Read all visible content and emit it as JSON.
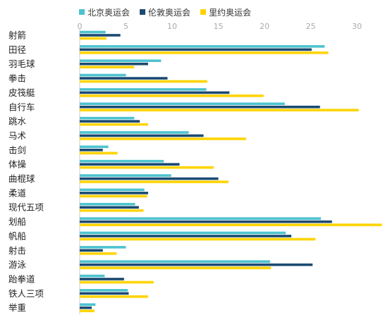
{
  "chart_data": {
    "type": "bar",
    "orientation": "horizontal",
    "categories": [
      "射箭",
      "田径",
      "羽毛球",
      "拳击",
      "皮筏艇",
      "自行车",
      "跳水",
      "马术",
      "击剑",
      "体操",
      "曲棍球",
      "柔道",
      "现代五项",
      "划船",
      "帆船",
      "射击",
      "游泳",
      "跆拳道",
      "铁人三项",
      "举重"
    ],
    "series": [
      {
        "name": "北京奥运会",
        "color": "#4dc3cf",
        "values": [
          2.8,
          26.5,
          8.8,
          5,
          13.7,
          22.2,
          5.9,
          11.8,
          3.1,
          9.1,
          9.9,
          7,
          6,
          26.1,
          22.3,
          5,
          20.6,
          2.7,
          5.2,
          1.7
        ]
      },
      {
        "name": "伦敦奥运会",
        "color": "#1b4a72",
        "values": [
          4.4,
          25.1,
          7.4,
          9.5,
          16.2,
          26,
          6.5,
          13.4,
          2.5,
          10.8,
          15,
          7.4,
          6.4,
          27.3,
          22.9,
          2.5,
          25.2,
          4.8,
          5.3,
          1.3
        ]
      },
      {
        "name": "里约奥运会",
        "color": "#ffd400",
        "values": [
          2.9,
          26.9,
          5.9,
          13.8,
          19.9,
          30.2,
          7.4,
          18,
          4.1,
          14.5,
          16.1,
          7.3,
          6.9,
          32.7,
          25.5,
          4,
          20.7,
          8,
          7.4,
          1.6
        ]
      }
    ],
    "xlim": [
      0,
      33
    ],
    "ticks": [
      0,
      5,
      10,
      15,
      20,
      25,
      30
    ],
    "legend_position": "top",
    "grid": false
  }
}
